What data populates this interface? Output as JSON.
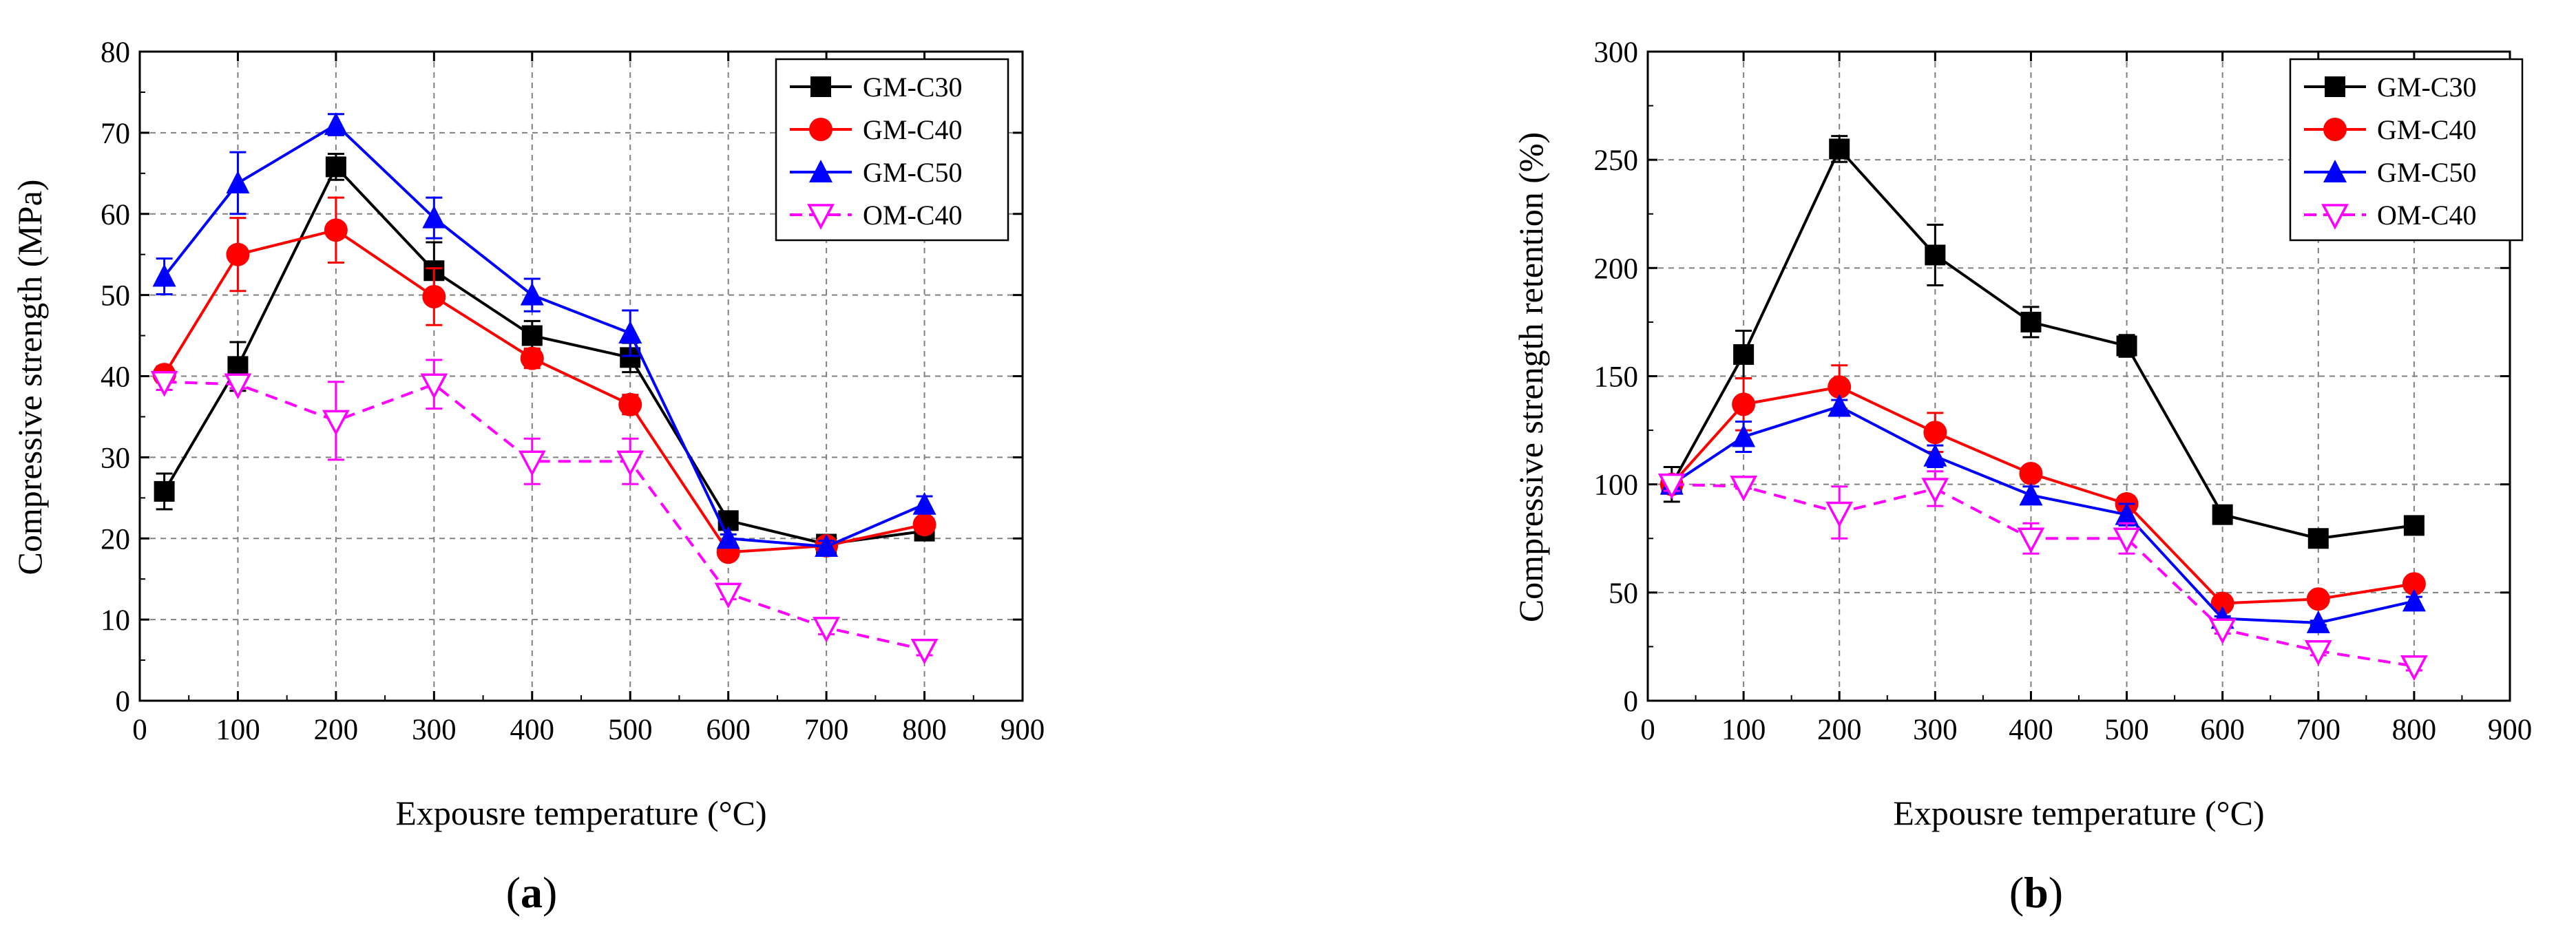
{
  "chart_data": [
    {
      "type": "line",
      "panel": "a",
      "xlabel": "Expousre temperature (°C)",
      "ylabel": "Compressive strength (MPa)",
      "xlim": [
        0,
        900
      ],
      "ylim": [
        0,
        80
      ],
      "xticks": [
        "0",
        "100",
        "200",
        "300",
        "400",
        "500",
        "600",
        "700",
        "800",
        "900"
      ],
      "yticks": [
        "0",
        "10",
        "20",
        "30",
        "40",
        "50",
        "60",
        "70",
        "80"
      ],
      "grid": true,
      "legend_position": "top-right",
      "x": [
        25,
        100,
        200,
        300,
        400,
        500,
        600,
        700,
        800
      ],
      "series": [
        {
          "name": "GM-C30",
          "color": "#000000",
          "marker": "square",
          "line": "solid",
          "values": [
            25.8,
            41.2,
            65.8,
            53.0,
            45.0,
            42.3,
            22.2,
            19.3,
            20.9
          ],
          "errors": [
            2.2,
            3.0,
            1.6,
            3.5,
            1.8,
            1.8,
            0.8,
            0.5,
            0.6
          ]
        },
        {
          "name": "GM-C40",
          "color": "#ff0000",
          "marker": "circle",
          "line": "solid",
          "values": [
            40.2,
            55.0,
            58.0,
            49.8,
            42.2,
            36.5,
            18.3,
            19.1,
            21.7
          ],
          "errors": [
            1.0,
            4.5,
            4.0,
            3.5,
            1.2,
            1.2,
            0.5,
            0.5,
            0.6
          ]
        },
        {
          "name": "GM-C50",
          "color": "#0000ff",
          "marker": "triangle",
          "line": "solid",
          "values": [
            52.3,
            63.8,
            71.0,
            59.5,
            50.0,
            45.3,
            20.0,
            19.0,
            24.2
          ],
          "errors": [
            2.2,
            3.8,
            1.3,
            2.5,
            2.0,
            2.8,
            0.5,
            0.7,
            1.0
          ]
        },
        {
          "name": "OM-C40",
          "color": "#ff00ff",
          "marker": "triangle-down-open",
          "line": "dashed",
          "values": [
            39.3,
            39.0,
            34.5,
            39.0,
            29.5,
            29.5,
            13.2,
            9.0,
            6.3
          ],
          "errors": [
            1.0,
            0.5,
            4.8,
            3.0,
            2.8,
            2.8,
            0.7,
            0.8,
            0.7
          ]
        }
      ]
    },
    {
      "type": "line",
      "panel": "b",
      "xlabel": "Expousre temperature (°C)",
      "ylabel": "Compressive strength retention (%)",
      "xlim": [
        0,
        900
      ],
      "ylim": [
        0,
        300
      ],
      "xticks": [
        "0",
        "100",
        "200",
        "300",
        "400",
        "500",
        "600",
        "700",
        "800",
        "900"
      ],
      "yticks": [
        "0",
        "50",
        "100",
        "150",
        "200",
        "250",
        "300"
      ],
      "grid": true,
      "legend_position": "top-right",
      "x": [
        25,
        100,
        200,
        300,
        400,
        500,
        600,
        700,
        800
      ],
      "series": [
        {
          "name": "GM-C30",
          "color": "#000000",
          "marker": "square",
          "line": "solid",
          "values": [
            100,
            160,
            255,
            206,
            175,
            164,
            86,
            75,
            81
          ],
          "errors": [
            8,
            11,
            6,
            14,
            7,
            5,
            2,
            2,
            2
          ]
        },
        {
          "name": "GM-C40",
          "color": "#ff0000",
          "marker": "circle",
          "line": "solid",
          "values": [
            100,
            137,
            145,
            124,
            105,
            91,
            45,
            47,
            54
          ],
          "errors": [
            3,
            12,
            10,
            9,
            3,
            3,
            1,
            1,
            2
          ]
        },
        {
          "name": "GM-C50",
          "color": "#0000ff",
          "marker": "triangle",
          "line": "solid",
          "values": [
            100,
            122,
            136,
            113,
            95,
            86,
            38,
            36,
            46
          ],
          "errors": [
            4,
            7,
            3,
            5,
            4,
            5,
            1,
            1,
            2
          ]
        },
        {
          "name": "OM-C40",
          "color": "#ff00ff",
          "marker": "triangle-down-open",
          "line": "dashed",
          "values": [
            100,
            99,
            87,
            98,
            75,
            75,
            33,
            23,
            16
          ],
          "errors": [
            3,
            1,
            12,
            8,
            7,
            7,
            2,
            2,
            2
          ]
        }
      ]
    }
  ],
  "panel_labels": [
    "a",
    "b"
  ]
}
